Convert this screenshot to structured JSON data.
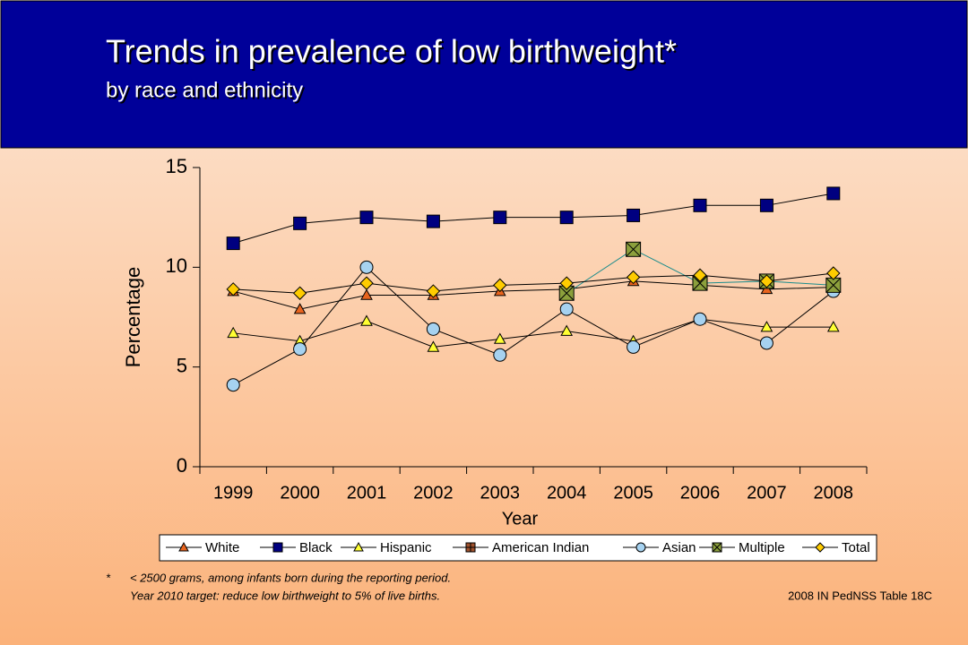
{
  "chart_data": {
    "type": "line",
    "title": "Trends in prevalence of low birthweight*",
    "subtitle": "by race and ethnicity",
    "x_label": "Year",
    "y_label": "Percentage",
    "categories": [
      "1999",
      "2000",
      "2001",
      "2002",
      "2003",
      "2004",
      "2005",
      "2006",
      "2007",
      "2008"
    ],
    "ylim": [
      0,
      15
    ],
    "yticks": [
      0,
      5,
      10,
      15
    ],
    "series": [
      {
        "name": "White",
        "color": "#e8641e",
        "marker": "triangle",
        "values": [
          8.8,
          7.9,
          8.6,
          8.6,
          8.8,
          8.9,
          9.3,
          9.1,
          8.9,
          9.0
        ]
      },
      {
        "name": "Black",
        "color": "#000080",
        "marker": "square",
        "values": [
          11.2,
          12.2,
          12.5,
          12.3,
          12.5,
          12.5,
          12.6,
          13.1,
          13.1,
          13.7
        ]
      },
      {
        "name": "Hispanic",
        "color": "#ffff33",
        "marker": "triangle",
        "values": [
          6.7,
          6.3,
          7.3,
          6.0,
          6.4,
          6.8,
          6.3,
          7.4,
          7.0,
          7.0
        ]
      },
      {
        "name": "American Indian",
        "color": "#a0522d",
        "marker": "plus-square",
        "values": [
          null,
          null,
          null,
          null,
          null,
          null,
          null,
          null,
          null,
          null
        ]
      },
      {
        "name": "Asian",
        "color": "#a6d2f0",
        "marker": "circle",
        "values": [
          4.1,
          5.9,
          10.0,
          6.9,
          5.6,
          7.9,
          6.0,
          7.4,
          6.2,
          8.8
        ]
      },
      {
        "name": "Multiple",
        "color": "#8ca03c",
        "marker": "x-square",
        "values": [
          null,
          null,
          null,
          null,
          null,
          8.7,
          10.9,
          9.2,
          9.3,
          9.1
        ]
      },
      {
        "name": "Total",
        "color": "#ffcc00",
        "marker": "diamond",
        "values": [
          8.9,
          8.7,
          9.2,
          8.8,
          9.1,
          9.2,
          9.5,
          9.6,
          9.3,
          9.7
        ]
      }
    ],
    "footnote_marker": "*",
    "notes": [
      "< 2500 grams, among infants born during the reporting period.",
      "Year 2010 target: reduce low birthweight to 5% of live births."
    ],
    "source": "2008 IN PedNSS Table 18C"
  }
}
